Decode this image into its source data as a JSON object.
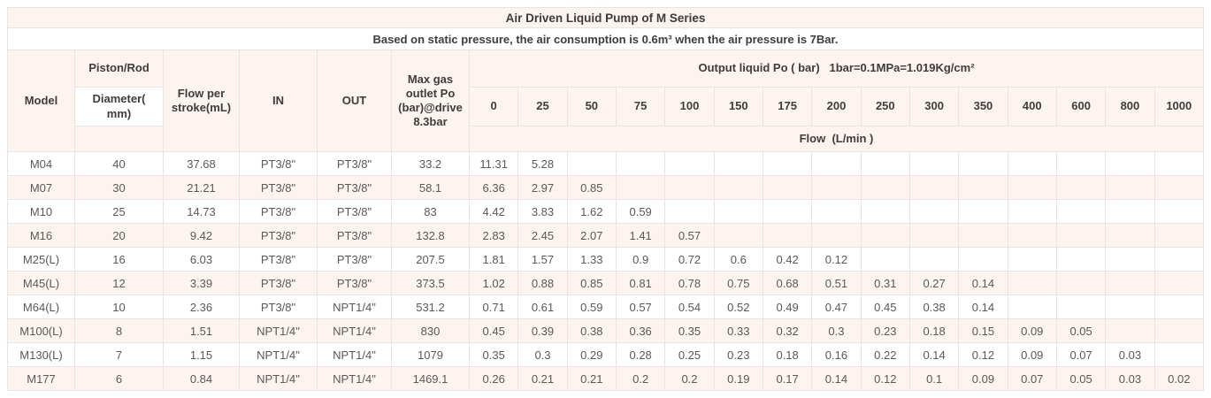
{
  "table": {
    "title": "Air Driven Liquid Pump of M Series",
    "subtitle": "Based on static pressure, the air consumption is 0.6m³ when the air pressure is 7Bar.",
    "headers": {
      "model": "Model",
      "piston_rod": "Piston/Rod",
      "diameter": "Diameter( mm)",
      "flow_per_stroke": "Flow per stroke(mL)",
      "in": "IN",
      "out": "OUT",
      "max_gas_outlet": "Max gas outlet Po (bar)@drive 8.3bar",
      "output_liquid": "Output liquid Po ( bar)   1bar=0.1MPa=1.019Kg/cm²",
      "flow_unit": "Flow  (L/min )"
    },
    "pressures": [
      "0",
      "25",
      "50",
      "75",
      "100",
      "150",
      "175",
      "200",
      "250",
      "300",
      "350",
      "400",
      "600",
      "800",
      "1000"
    ],
    "rows": [
      {
        "model": "M04",
        "diameter": "40",
        "flow_per_stroke": "37.68",
        "in": "PT3/8\"",
        "out": "PT3/8\"",
        "max_gas": "33.2",
        "flows": [
          "11.31",
          "5.28",
          "",
          "",
          "",
          "",
          "",
          "",
          "",
          "",
          "",
          "",
          "",
          "",
          ""
        ]
      },
      {
        "model": "M07",
        "diameter": "30",
        "flow_per_stroke": "21.21",
        "in": "PT3/8\"",
        "out": "PT3/8\"",
        "max_gas": "58.1",
        "flows": [
          "6.36",
          "2.97",
          "0.85",
          "",
          "",
          "",
          "",
          "",
          "",
          "",
          "",
          "",
          "",
          "",
          ""
        ]
      },
      {
        "model": "M10",
        "diameter": "25",
        "flow_per_stroke": "14.73",
        "in": "PT3/8\"",
        "out": "PT3/8\"",
        "max_gas": "83",
        "flows": [
          "4.42",
          "3.83",
          "1.62",
          "0.59",
          "",
          "",
          "",
          "",
          "",
          "",
          "",
          "",
          "",
          "",
          ""
        ]
      },
      {
        "model": "M16",
        "diameter": "20",
        "flow_per_stroke": "9.42",
        "in": "PT3/8\"",
        "out": "PT3/8\"",
        "max_gas": "132.8",
        "flows": [
          "2.83",
          "2.45",
          "2.07",
          "1.41",
          "0.57",
          "",
          "",
          "",
          "",
          "",
          "",
          "",
          "",
          "",
          ""
        ]
      },
      {
        "model": "M25(L)",
        "diameter": "16",
        "flow_per_stroke": "6.03",
        "in": "PT3/8\"",
        "out": "PT3/8\"",
        "max_gas": "207.5",
        "flows": [
          "1.81",
          "1.57",
          "1.33",
          "0.9",
          "0.72",
          "0.6",
          "0.42",
          "0.12",
          "",
          "",
          "",
          "",
          "",
          "",
          ""
        ]
      },
      {
        "model": "M45(L)",
        "diameter": "12",
        "flow_per_stroke": "3.39",
        "in": "PT3/8\"",
        "out": "PT3/8\"",
        "max_gas": "373.5",
        "flows": [
          "1.02",
          "0.88",
          "0.85",
          "0.81",
          "0.78",
          "0.75",
          "0.68",
          "0.51",
          "0.31",
          "0.27",
          "0.14",
          "",
          "",
          "",
          ""
        ]
      },
      {
        "model": "M64(L)",
        "diameter": "10",
        "flow_per_stroke": "2.36",
        "in": "PT3/8\"",
        "out": "NPT1/4\"",
        "max_gas": "531.2",
        "flows": [
          "0.71",
          "0.61",
          "0.59",
          "0.57",
          "0.54",
          "0.52",
          "0.49",
          "0.47",
          "0.45",
          "0.38",
          "0.14",
          "",
          "",
          "",
          ""
        ]
      },
      {
        "model": "M100(L)",
        "diameter": "8",
        "flow_per_stroke": "1.51",
        "in": "NPT1/4\"",
        "out": "NPT1/4\"",
        "max_gas": "830",
        "flows": [
          "0.45",
          "0.39",
          "0.38",
          "0.36",
          "0.35",
          "0.33",
          "0.32",
          "0.3",
          "0.23",
          "0.18",
          "0.15",
          "0.09",
          "0.05",
          "",
          ""
        ]
      },
      {
        "model": "M130(L)",
        "diameter": "7",
        "flow_per_stroke": "1.15",
        "in": "NPT1/4\"",
        "out": "NPT1/4\"",
        "max_gas": "1079",
        "flows": [
          "0.35",
          "0.3",
          "0.29",
          "0.28",
          "0.25",
          "0.23",
          "0.18",
          "0.16",
          "0.22",
          "0.14",
          "0.12",
          "0.09",
          "0.07",
          "0.03",
          ""
        ]
      },
      {
        "model": "M177",
        "diameter": "6",
        "flow_per_stroke": "0.84",
        "in": "NPT1/4\"",
        "out": "NPT1/4\"",
        "max_gas": "1469.1",
        "flows": [
          "0.26",
          "0.21",
          "0.21",
          "0.2",
          "0.2",
          "0.19",
          "0.17",
          "0.14",
          "0.12",
          "0.1",
          "0.09",
          "0.07",
          "0.05",
          "0.03",
          "0.02"
        ]
      }
    ]
  },
  "colors": {
    "header_bg": "#fdf3ef",
    "alt_row_bg": "#fdf3ef",
    "border": "#e8e4e1",
    "header_text": "#3d3d3d",
    "data_text": "#595959"
  }
}
